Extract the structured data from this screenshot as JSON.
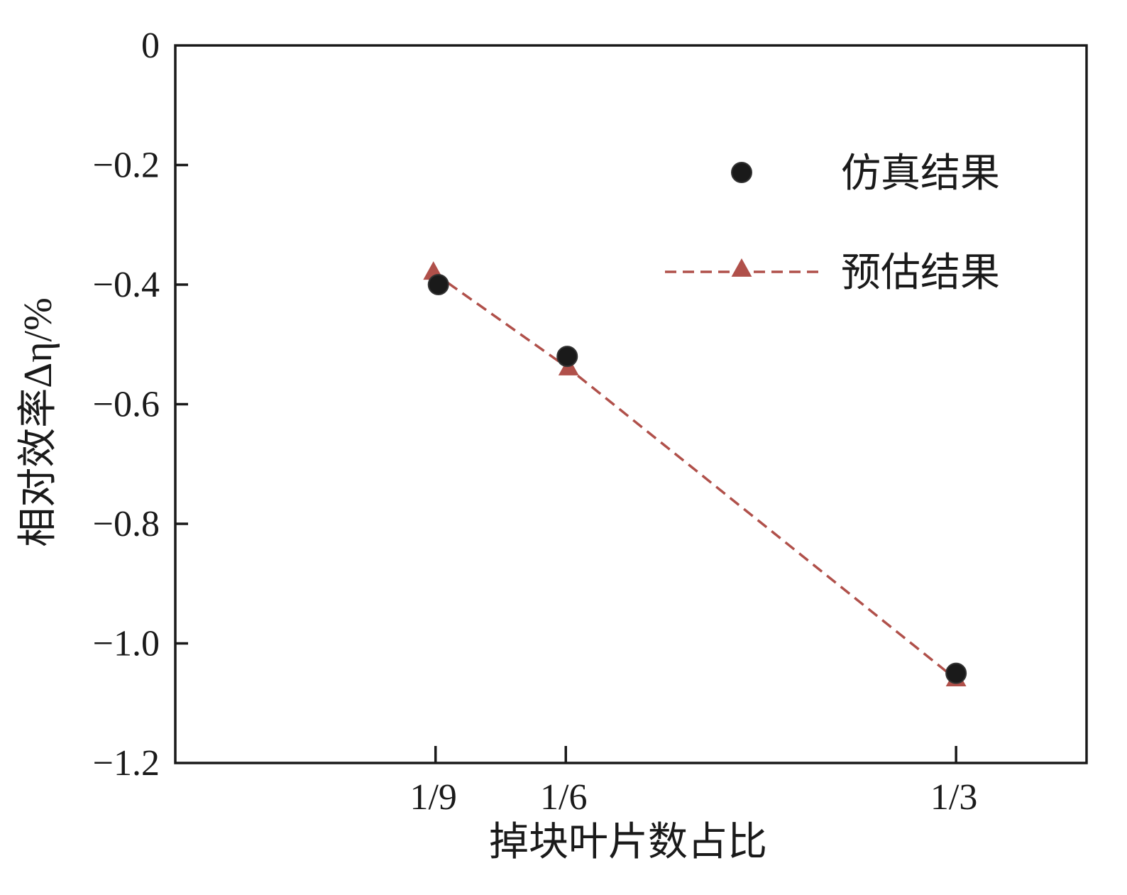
{
  "chart_data": {
    "type": "scatter",
    "title": "",
    "xlabel": "掉块叶片数占比",
    "ylabel": "相对效率Δη/%",
    "x_scale": "linear",
    "xlim": [
      0.0,
      0.389
    ],
    "ylim": [
      -1.2,
      0
    ],
    "x_ticks": [
      {
        "value": 0.1111,
        "label": "1/9"
      },
      {
        "value": 0.1667,
        "label": "1/6"
      },
      {
        "value": 0.3333,
        "label": "1/3"
      }
    ],
    "y_ticks": [
      {
        "value": 0,
        "label": "0"
      },
      {
        "value": -0.2,
        "label": "−0.2"
      },
      {
        "value": -0.4,
        "label": "−0.4"
      },
      {
        "value": -0.6,
        "label": "−0.6"
      },
      {
        "value": -0.8,
        "label": "−0.8"
      },
      {
        "value": -1.0,
        "label": "−1.0"
      },
      {
        "value": -1.2,
        "label": "−1.2"
      }
    ],
    "grid": false,
    "legend_position": "top-right",
    "series": [
      {
        "name": "仿真结果",
        "style": "markers",
        "marker": "circle",
        "color": "#1a1a1a",
        "x": [
          0.1111,
          0.1667,
          0.3333
        ],
        "y": [
          -0.4,
          -0.52,
          -1.05
        ]
      },
      {
        "name": "预估结果",
        "style": "dashed-line-markers",
        "marker": "triangle",
        "color": "#b0504a",
        "x": [
          0.1111,
          0.1667,
          0.3333
        ],
        "y": [
          -0.38,
          -0.54,
          -1.06
        ]
      }
    ]
  }
}
